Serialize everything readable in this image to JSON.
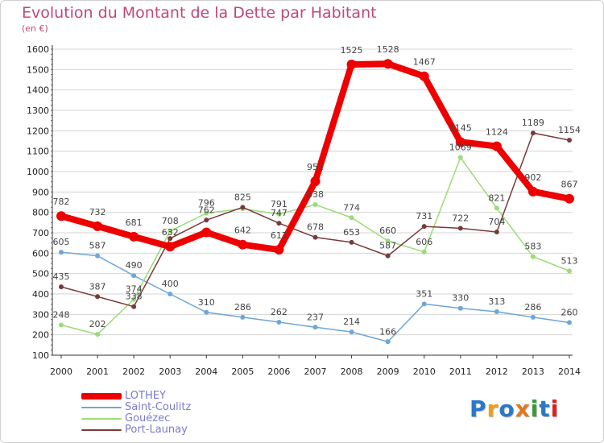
{
  "title": "Evolution du Montant de la Dette par Habitant",
  "unit": "(en €)",
  "logo": {
    "text": "Proxiti",
    "colors": [
      "#2a78c8",
      "#e8a020",
      "#2a78c8",
      "#e07820",
      "#3a9a3a",
      "#2a78c8",
      "#e02020"
    ]
  },
  "chart_data": {
    "type": "line",
    "x": [
      "2000",
      "2001",
      "2002",
      "2003",
      "2004",
      "2005",
      "2006",
      "2007",
      "2008",
      "2009",
      "2010",
      "2011",
      "2012",
      "2013",
      "2014"
    ],
    "ylim": [
      100,
      1600
    ],
    "yticks": [
      "100",
      "200",
      "300",
      "400",
      "500",
      "600",
      "700",
      "800",
      "900",
      "1000",
      "1100",
      "1200",
      "1300",
      "1400",
      "1500",
      "1600"
    ],
    "grid": "horizontal",
    "legend_position": "bottom-left",
    "series": [
      {
        "name": "LOTHEY",
        "color": "#ee0000",
        "width": 8,
        "marker": 6,
        "values": [
          782,
          732,
          681,
          632,
          702,
          642,
          617,
          952,
          1525,
          1528,
          1467,
          1145,
          1124,
          902,
          867
        ],
        "labels": [
          "782",
          "732",
          "681",
          "632",
          "",
          "642",
          "617",
          "952",
          "1525",
          "1528",
          "1467",
          "1145",
          "1124",
          "902",
          "867"
        ]
      },
      {
        "name": "Saint-Coulitz",
        "color": "#6fa6d6",
        "width": 1.5,
        "marker": 3,
        "values": [
          605,
          587,
          490,
          400,
          310,
          286,
          262,
          237,
          214,
          166,
          351,
          330,
          313,
          286,
          260
        ],
        "labels": [
          "605",
          "587",
          "490",
          "400",
          "310",
          "286",
          "262",
          "237",
          "214",
          "166",
          "351",
          "330",
          "313",
          "286",
          "260"
        ]
      },
      {
        "name": "Gouézec",
        "color": "#99dd77",
        "width": 1.5,
        "marker": 3,
        "values": [
          248,
          202,
          374,
          708,
          796,
          818,
          791,
          838,
          774,
          660,
          606,
          1069,
          821,
          583,
          513
        ],
        "labels": [
          "248",
          "202",
          "374",
          "708",
          "796",
          "",
          "791",
          "838",
          "774",
          "660",
          "606",
          "1069",
          "821",
          "583",
          "513"
        ]
      },
      {
        "name": "Port-Launay",
        "color": "#7a3a3a",
        "width": 1.5,
        "marker": 3,
        "values": [
          435,
          387,
          338,
          672,
          762,
          825,
          747,
          678,
          653,
          587,
          731,
          722,
          704,
          1189,
          1154
        ],
        "labels": [
          "435",
          "387",
          "338",
          "",
          "762",
          "825",
          "747",
          "678",
          "653",
          "587",
          "731",
          "722",
          "704",
          "1189",
          "1154"
        ]
      }
    ]
  }
}
